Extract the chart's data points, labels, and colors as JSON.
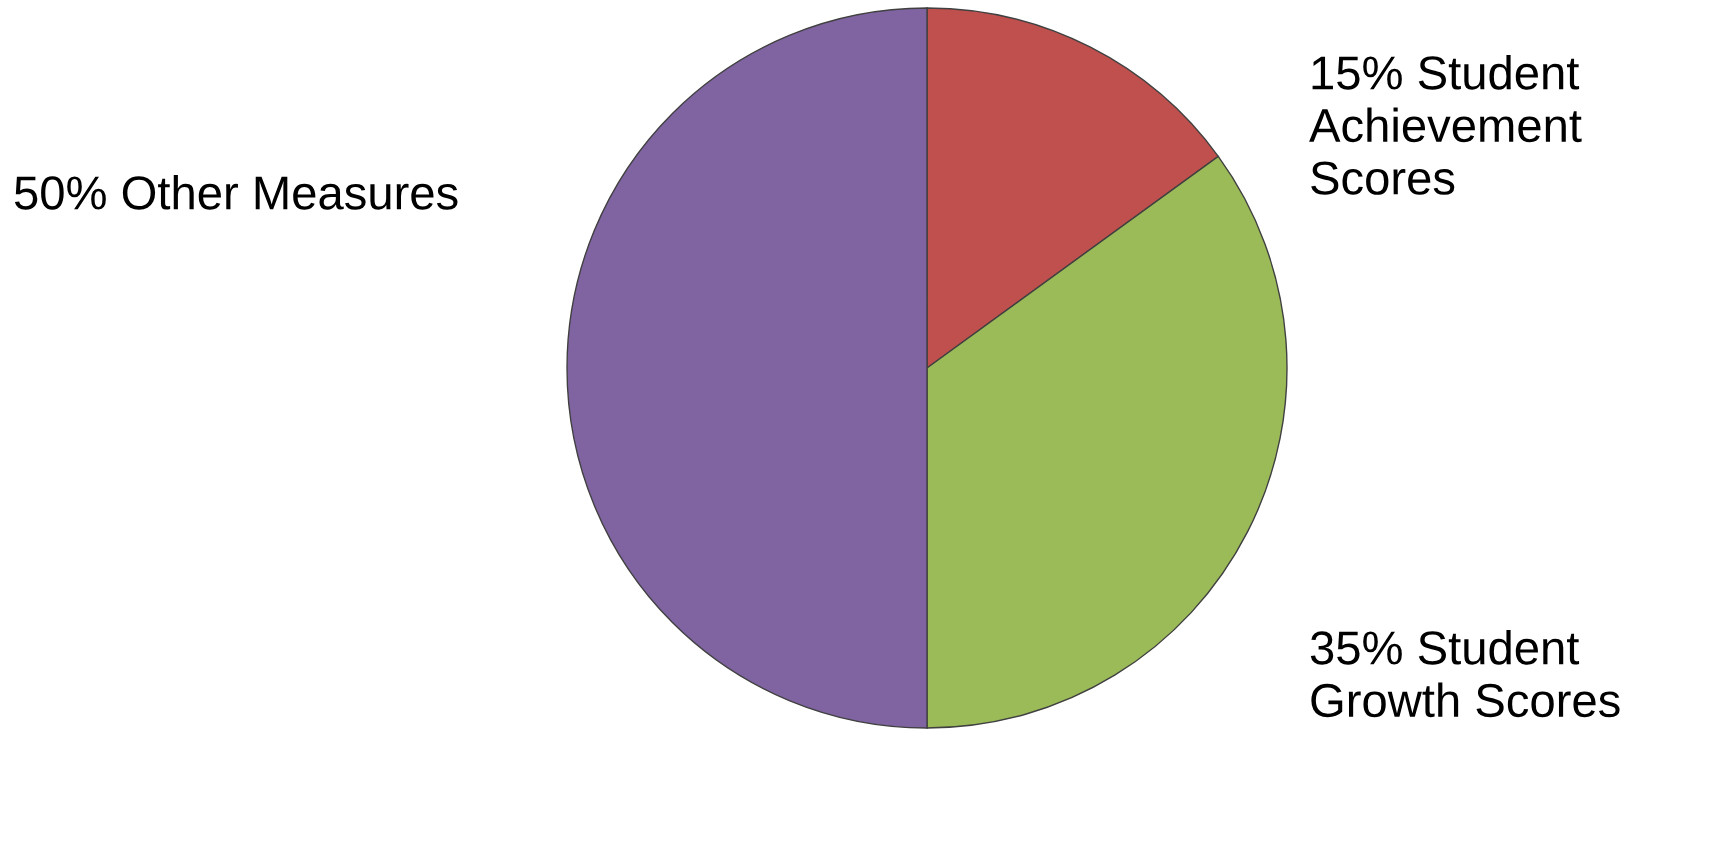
{
  "chart_data": {
    "type": "pie",
    "categories": [
      "15% Student Achievement Scores",
      "35% Student Growth Scores",
      "50% Other Measures"
    ],
    "values": [
      15,
      35,
      50
    ],
    "colors": [
      "#c0504d",
      "#9bbb59",
      "#8064a2"
    ]
  }
}
